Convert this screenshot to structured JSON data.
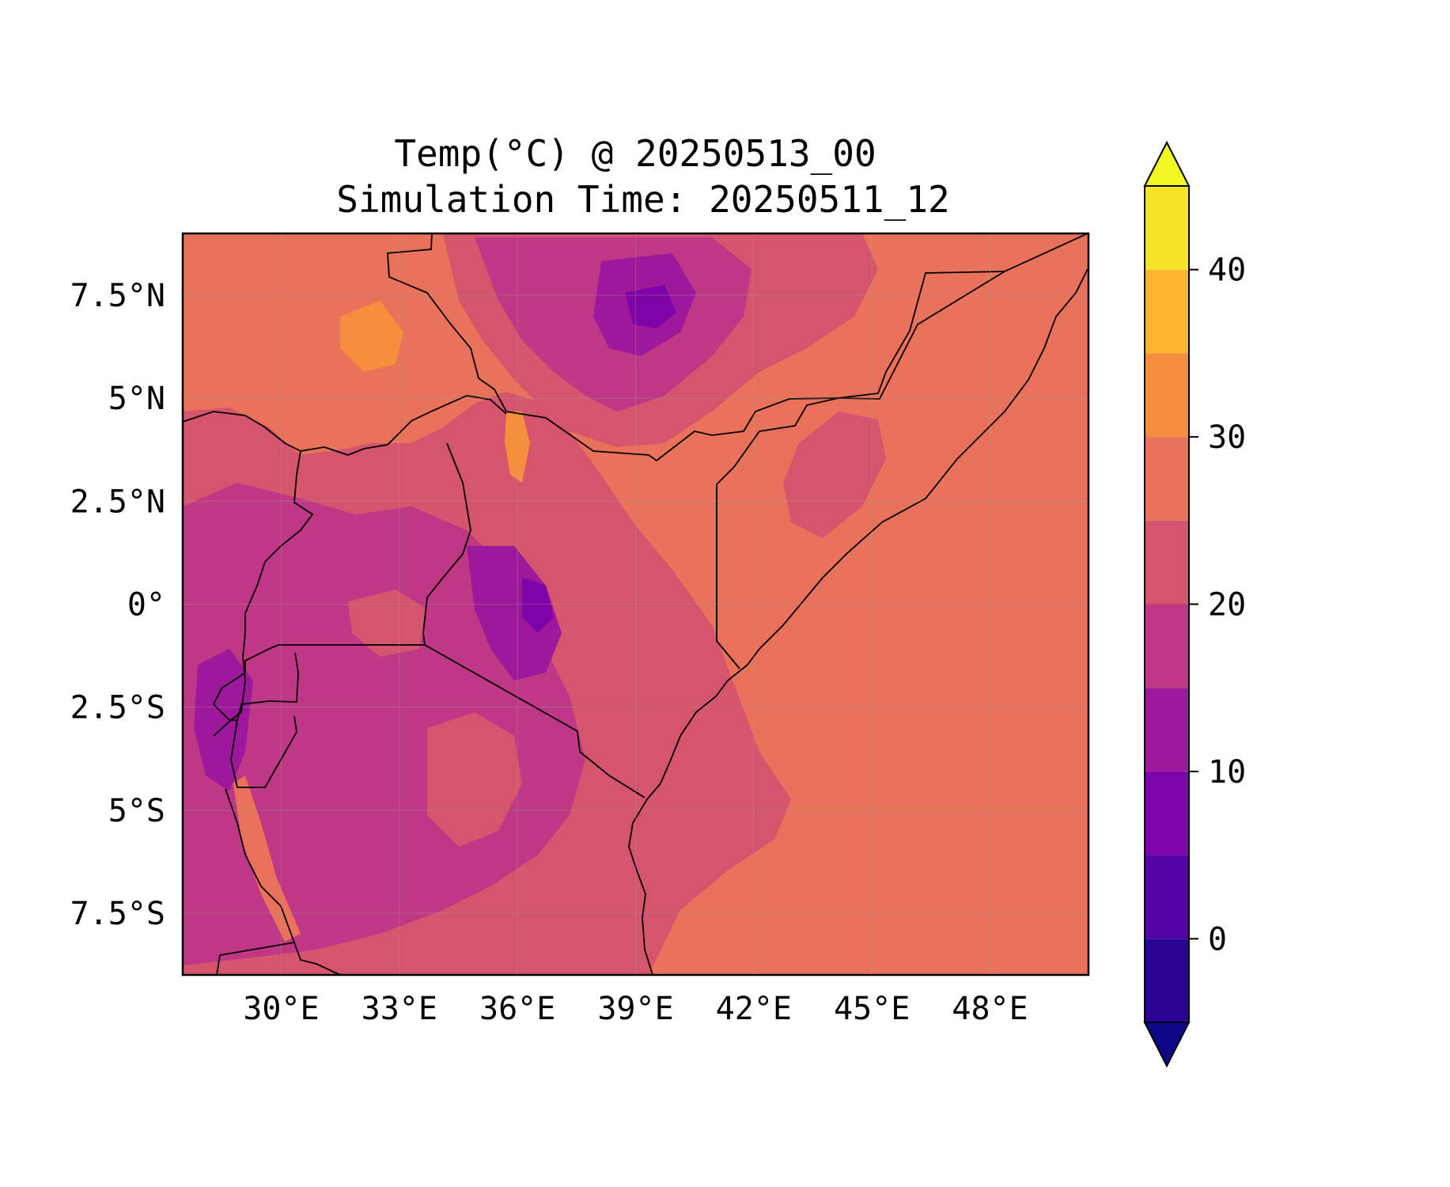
{
  "title": {
    "line1": "Temp(°C) @ 20250513_00",
    "line2": "Simulation Time: 20250511_12"
  },
  "map": {
    "lon_range": [
      27.5,
      50.5
    ],
    "lat_range": [
      -9,
      9
    ],
    "x_ticks": [
      "30°E",
      "33°E",
      "36°E",
      "39°E",
      "42°E",
      "45°E",
      "48°E"
    ],
    "x_tick_values": [
      30,
      33,
      36,
      39,
      42,
      45,
      48
    ],
    "y_ticks": [
      "7.5°N",
      "5°N",
      "2.5°N",
      "0°",
      "2.5°S",
      "5°S",
      "7.5°S"
    ],
    "y_tick_values": [
      7.5,
      5,
      2.5,
      0,
      -2.5,
      -5,
      -7.5
    ],
    "colors": {
      "ocean_25_30": "#e8735a",
      "lowland_20_25": "#d5546e",
      "highland_15_20": "#be3885",
      "highland_10_15": "#9e189b",
      "peak_5_10": "#7e03a8",
      "hot_30_35": "#f58f3b"
    }
  },
  "colorbar": {
    "levels": [
      -5,
      0,
      5,
      10,
      15,
      20,
      25,
      30,
      35,
      40,
      45
    ],
    "colors": [
      "#2a0593",
      "#5302a3",
      "#7e03a8",
      "#9e189b",
      "#be3885",
      "#d5546e",
      "#e8735a",
      "#f58f3b",
      "#fdb42f",
      "#f5e426"
    ],
    "under_color": "#0d0887",
    "over_color": "#f0f921",
    "tick_values": [
      0,
      10,
      20,
      30,
      40
    ],
    "tick_labels": [
      "0",
      "10",
      "20",
      "30",
      "40"
    ]
  }
}
